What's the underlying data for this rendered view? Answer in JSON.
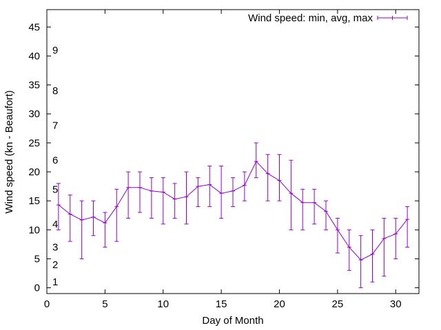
{
  "chart_data": {
    "type": "line",
    "title": "",
    "xlabel": "Day of Month",
    "ylabel": "Wind speed (kn - Beaufort)",
    "xlim": [
      0,
      32
    ],
    "ylim": [
      -1,
      48
    ],
    "xticks": [
      0,
      5,
      10,
      15,
      20,
      25,
      30
    ],
    "yticks": [
      0,
      5,
      10,
      15,
      20,
      25,
      30,
      35,
      40,
      45
    ],
    "grid": false,
    "legend": {
      "position": "top-right"
    },
    "series": [
      {
        "name": "Wind speed: min, avg, max",
        "color": "#9400d3",
        "x": [
          1,
          2,
          3,
          4,
          5,
          6,
          7,
          8,
          9,
          10,
          11,
          12,
          13,
          14,
          15,
          16,
          17,
          18,
          19,
          20,
          21,
          22,
          23,
          24,
          25,
          26,
          27,
          28,
          29,
          30,
          31
        ],
        "avg": [
          14.3,
          12.7,
          11.7,
          12.2,
          11.2,
          14.0,
          17.3,
          17.3,
          16.7,
          16.5,
          15.3,
          15.7,
          17.5,
          17.8,
          16.3,
          16.7,
          17.7,
          21.8,
          19.7,
          18.5,
          16.3,
          14.7,
          14.7,
          13.2,
          10.0,
          7.0,
          4.8,
          5.8,
          8.5,
          9.3,
          11.8
        ],
        "min": [
          10,
          8,
          5,
          9,
          7,
          8,
          12,
          13,
          12,
          11,
          12,
          11,
          14,
          14,
          12,
          14,
          15,
          19,
          15,
          15,
          10,
          10,
          11,
          10,
          6,
          3,
          0,
          1,
          2,
          5,
          7
        ],
        "max": [
          18,
          16,
          15,
          15,
          13,
          17,
          20,
          20,
          19,
          19,
          18,
          20,
          19,
          21,
          21,
          19,
          20,
          25,
          23,
          23,
          22,
          17,
          17,
          15,
          12,
          10,
          9,
          10,
          12,
          12,
          14
        ]
      }
    ],
    "annotations": [
      {
        "text": "1",
        "y": 1
      },
      {
        "text": "2",
        "y": 4
      },
      {
        "text": "3",
        "y": 7
      },
      {
        "text": "4",
        "y": 11
      },
      {
        "text": "5",
        "y": 17
      },
      {
        "text": "6",
        "y": 22
      },
      {
        "text": "7",
        "y": 28
      },
      {
        "text": "8",
        "y": 34
      },
      {
        "text": "9",
        "y": 41
      }
    ]
  }
}
